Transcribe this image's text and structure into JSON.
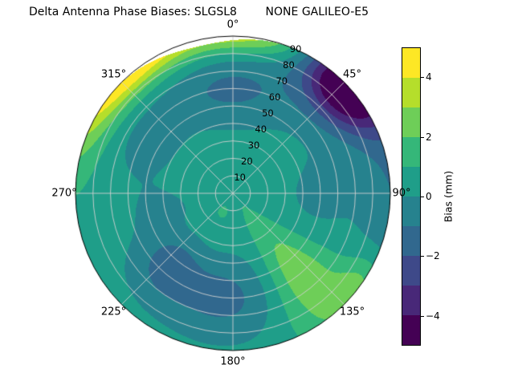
{
  "title": "Delta Antenna Phase Biases: SLGSL8        NONE GALILEO-E5",
  "chart_data": {
    "type": "heatmap",
    "projection": "polar",
    "title": "Delta Antenna Phase Biases: SLGSL8        NONE GALILEO-E5",
    "azimuth_ticks": [
      {
        "angle_deg": 0,
        "label": "0°"
      },
      {
        "angle_deg": 45,
        "label": "45°"
      },
      {
        "angle_deg": 90,
        "label": "90°"
      },
      {
        "angle_deg": 135,
        "label": "135°"
      },
      {
        "angle_deg": 180,
        "label": "180°"
      },
      {
        "angle_deg": 225,
        "label": "225°"
      },
      {
        "angle_deg": 270,
        "label": "270°"
      },
      {
        "angle_deg": 315,
        "label": "315°"
      }
    ],
    "radial_ticks": {
      "values": [
        10,
        20,
        30,
        40,
        50,
        60,
        70,
        80,
        90
      ],
      "max": 90,
      "label_angle_deg": 23.5
    },
    "colorbar": {
      "label": "Bias (mm)",
      "min": -5,
      "max": 5,
      "level_step": 1,
      "tick_values": [
        -4,
        -2,
        0,
        2,
        4
      ],
      "tick_labels": [
        "−4",
        "−2",
        "0",
        "2",
        "4"
      ],
      "colors": [
        "#440154",
        "#482878",
        "#3e4989",
        "#31688e",
        "#26828e",
        "#1f9e89",
        "#35b779",
        "#6ece58",
        "#b5de2b",
        "#fde725"
      ]
    },
    "field": {
      "units": "mm",
      "base": 0.6,
      "blobs": [
        {
          "az": 318,
          "z": 95,
          "saz": 22,
          "sz": 11,
          "amp": 5.5
        },
        {
          "az": 5,
          "z": 94,
          "saz": 16,
          "sz": 9,
          "amp": 3.2
        },
        {
          "az": 47,
          "z": 88,
          "saz": 13,
          "sz": 14,
          "amp": -6.0
        },
        {
          "az": 85,
          "z": 95,
          "saz": 30,
          "sz": 14,
          "amp": -1.6
        },
        {
          "az": 140,
          "z": 62,
          "saz": 13,
          "sz": 26,
          "amp": 2.4
        },
        {
          "az": 127,
          "z": 88,
          "saz": 10,
          "sz": 8,
          "amp": 1.6
        },
        {
          "az": 185,
          "z": 60,
          "saz": 22,
          "sz": 18,
          "amp": -1.9
        },
        {
          "az": 222,
          "z": 55,
          "saz": 14,
          "sz": 16,
          "amp": -1.7
        },
        {
          "az": 255,
          "z": 40,
          "saz": 14,
          "sz": 14,
          "amp": -1.0
        },
        {
          "az": 0,
          "z": 60,
          "saz": 28,
          "sz": 16,
          "amp": -1.8
        },
        {
          "az": 300,
          "z": 55,
          "saz": 18,
          "sz": 14,
          "amp": -0.9
        },
        {
          "az": 210,
          "z": 15,
          "saz": 40,
          "sz": 12,
          "amp": 0.5
        },
        {
          "az": 90,
          "z": 50,
          "saz": 25,
          "sz": 18,
          "amp": -0.8
        }
      ]
    },
    "nodata": {
      "azimuth_deg": 347,
      "sigma_deg": 14,
      "max_depth_frac": 0.04
    }
  }
}
